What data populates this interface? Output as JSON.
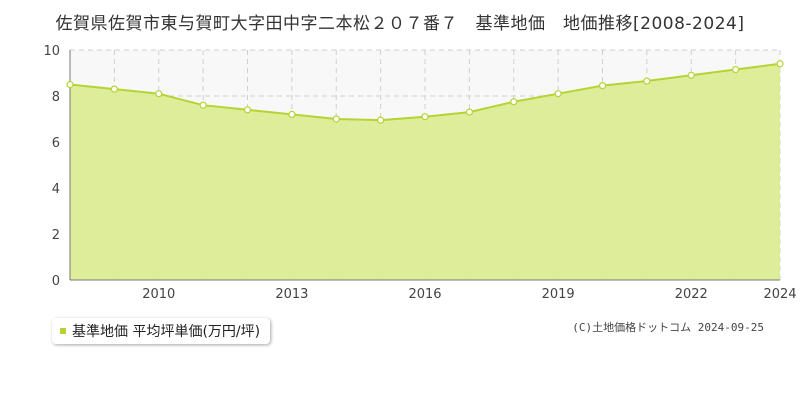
{
  "chart_data": {
    "type": "area",
    "title": "佐賀県佐賀市東与賀町大字田中字二本松２０７番７　基準地価　地価推移[2008-2024]",
    "x": [
      2008,
      2009,
      2010,
      2011,
      2012,
      2013,
      2014,
      2015,
      2016,
      2017,
      2018,
      2019,
      2020,
      2021,
      2022,
      2023,
      2024
    ],
    "series": [
      {
        "name": "基準地価 平均坪単価(万円/坪)",
        "values": [
          8.5,
          8.3,
          8.1,
          7.6,
          7.4,
          7.2,
          7.0,
          6.95,
          7.1,
          7.3,
          7.75,
          8.1,
          8.45,
          8.65,
          8.9,
          9.15,
          9.4
        ]
      }
    ],
    "x_ticks": [
      2010,
      2013,
      2016,
      2019,
      2022,
      2024
    ],
    "y_ticks": [
      0,
      2,
      4,
      6,
      8,
      10
    ],
    "xlim": [
      2008,
      2024
    ],
    "ylim": [
      0,
      10
    ],
    "grid": true,
    "legend_position": "bottom-left",
    "colors": {
      "fill": "#dcec95",
      "line": "#b5d334",
      "marker_fill": "#ffffff",
      "grid": "#cfcfcf",
      "plot_bg": "#f8f8f8"
    }
  },
  "credit": "(C)土地価格ドットコム 2024-09-25"
}
